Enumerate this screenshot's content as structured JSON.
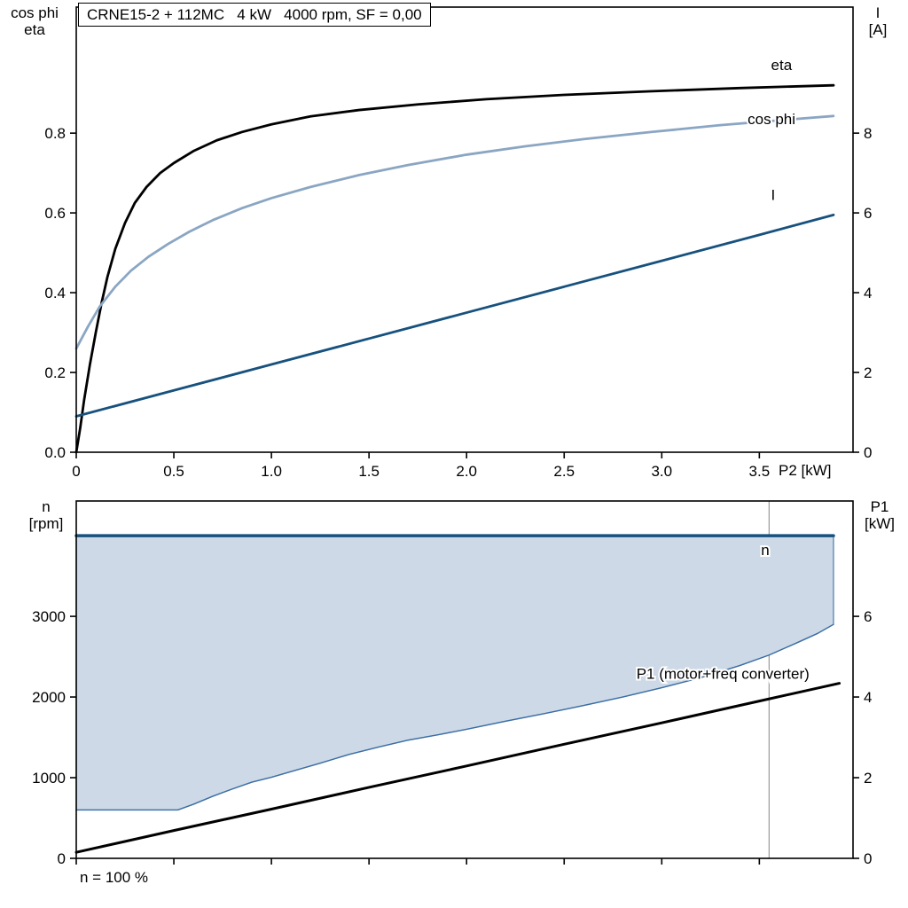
{
  "labels": {
    "top_left_1": "cos phi",
    "top_left_2": "eta",
    "top_right_1": "I",
    "top_right_2": "[A]",
    "bottom_left_1": "n",
    "bottom_left_2": "[rpm]",
    "bottom_right_1": "P1",
    "bottom_right_2": "[kW]"
  },
  "colors": {
    "black": "#000000",
    "dark_blue": "#17517e",
    "steel_blue": "#8aa6c3",
    "mid_blue": "#3c6fa5",
    "band_fill": "#cdd9e6",
    "ref_line": "#9a9a9a"
  },
  "chart_data": [
    {
      "type": "line",
      "title": "CRNE15-2 + 112MC   4 kW   4000 rpm, SF = 0,00",
      "x_label": "P2 [kW]",
      "x_range": [
        0,
        3.98
      ],
      "x_ticks": [
        {
          "v": 0,
          "label": "0"
        },
        {
          "v": 0.5,
          "label": "0.5"
        },
        {
          "v": 1.0,
          "label": "1.0"
        },
        {
          "v": 1.5,
          "label": "1.5"
        },
        {
          "v": 2.0,
          "label": "2.0"
        },
        {
          "v": 2.5,
          "label": "2.5"
        },
        {
          "v": 3.0,
          "label": "3.0"
        },
        {
          "v": 3.5,
          "label": "3.5"
        }
      ],
      "y_left": {
        "label": "cos phi / eta",
        "range": [
          0,
          1.116
        ],
        "ticks": [
          {
            "v": 0.0,
            "label": "0.0"
          },
          {
            "v": 0.2,
            "label": "0.2"
          },
          {
            "v": 0.4,
            "label": "0.4"
          },
          {
            "v": 0.6,
            "label": "0.6"
          },
          {
            "v": 0.8,
            "label": "0.8"
          }
        ]
      },
      "y_right": {
        "label": "I [A]",
        "range": [
          0,
          11.16
        ],
        "ticks": [
          {
            "v": 0,
            "label": "0"
          },
          {
            "v": 2,
            "label": "2"
          },
          {
            "v": 4,
            "label": "4"
          },
          {
            "v": 6,
            "label": "6"
          },
          {
            "v": 8,
            "label": "8"
          }
        ]
      },
      "series": [
        {
          "name": "eta",
          "axis": "left",
          "color": "#000000",
          "width": 2.8,
          "label": "eta",
          "label_x": 3.56,
          "label_y": 0.958,
          "label_anchor": "start",
          "points": [
            [
              0,
              0
            ],
            [
              0.02,
              0.06
            ],
            [
              0.04,
              0.13
            ],
            [
              0.07,
              0.22
            ],
            [
              0.1,
              0.3
            ],
            [
              0.13,
              0.375
            ],
            [
              0.16,
              0.44
            ],
            [
              0.2,
              0.51
            ],
            [
              0.25,
              0.575
            ],
            [
              0.3,
              0.625
            ],
            [
              0.36,
              0.665
            ],
            [
              0.43,
              0.7
            ],
            [
              0.5,
              0.725
            ],
            [
              0.6,
              0.755
            ],
            [
              0.72,
              0.782
            ],
            [
              0.85,
              0.803
            ],
            [
              1.0,
              0.822
            ],
            [
              1.2,
              0.842
            ],
            [
              1.45,
              0.858
            ],
            [
              1.75,
              0.872
            ],
            [
              2.1,
              0.885
            ],
            [
              2.5,
              0.896
            ],
            [
              2.95,
              0.905
            ],
            [
              3.4,
              0.913
            ],
            [
              3.88,
              0.92
            ]
          ]
        },
        {
          "name": "cos-phi",
          "axis": "left",
          "color": "#8aa6c3",
          "width": 2.8,
          "label": "cos phi",
          "label_x": 3.44,
          "label_y": 0.822,
          "label_anchor": "start",
          "points": [
            [
              0,
              0.26
            ],
            [
              0.06,
              0.315
            ],
            [
              0.12,
              0.365
            ],
            [
              0.2,
              0.415
            ],
            [
              0.28,
              0.455
            ],
            [
              0.37,
              0.49
            ],
            [
              0.47,
              0.522
            ],
            [
              0.58,
              0.553
            ],
            [
              0.7,
              0.582
            ],
            [
              0.85,
              0.612
            ],
            [
              1.0,
              0.637
            ],
            [
              1.2,
              0.665
            ],
            [
              1.45,
              0.695
            ],
            [
              1.7,
              0.72
            ],
            [
              2.0,
              0.746
            ],
            [
              2.3,
              0.767
            ],
            [
              2.6,
              0.785
            ],
            [
              2.95,
              0.803
            ],
            [
              3.3,
              0.82
            ],
            [
              3.6,
              0.832
            ],
            [
              3.88,
              0.843
            ]
          ]
        },
        {
          "name": "current",
          "axis": "right",
          "color": "#17517e",
          "width": 2.8,
          "label": "I",
          "label_x": 3.56,
          "label_y": 6.32,
          "label_anchor": "start",
          "points": [
            [
              0,
              0.9
            ],
            [
              0.5,
              1.55
            ],
            [
              1.0,
              2.2
            ],
            [
              1.5,
              2.85
            ],
            [
              2.0,
              3.5
            ],
            [
              2.5,
              4.15
            ],
            [
              3.0,
              4.8
            ],
            [
              3.5,
              5.45
            ],
            [
              3.88,
              5.95
            ]
          ]
        }
      ]
    },
    {
      "type": "line+area",
      "x_range": [
        0,
        3.98
      ],
      "x_ticks": [
        {
          "v": 0,
          "label": ""
        },
        {
          "v": 0.5,
          "label": ""
        },
        {
          "v": 1.0,
          "label": ""
        },
        {
          "v": 1.5,
          "label": ""
        },
        {
          "v": 2.0,
          "label": ""
        },
        {
          "v": 2.5,
          "label": ""
        },
        {
          "v": 3.0,
          "label": ""
        },
        {
          "v": 3.5,
          "label": ""
        }
      ],
      "y_left": {
        "label": "n [rpm]",
        "range": [
          0,
          4430
        ],
        "ticks": [
          {
            "v": 0,
            "label": "0"
          },
          {
            "v": 1000,
            "label": "1000"
          },
          {
            "v": 2000,
            "label": "2000"
          },
          {
            "v": 3000,
            "label": "3000"
          }
        ]
      },
      "y_right": {
        "label": "P1 [kW]",
        "range": [
          0,
          8.86
        ],
        "ticks": [
          {
            "v": 0,
            "label": "0"
          },
          {
            "v": 2,
            "label": "2"
          },
          {
            "v": 4,
            "label": "4"
          },
          {
            "v": 6,
            "label": "6"
          }
        ]
      },
      "ref_line_x": 3.55,
      "fill": {
        "upper": "n",
        "lower": "n-min",
        "color": "#cdd9e6",
        "edge_color": "#4a7ab0"
      },
      "footnote": "n = 100 %",
      "series": [
        {
          "name": "n-min",
          "axis": "left",
          "color": "#3c6fa5",
          "width": 1.4,
          "points": [
            [
              0,
              600
            ],
            [
              0.3,
              600
            ],
            [
              0.52,
              600
            ],
            [
              0.6,
              670
            ],
            [
              0.7,
              770
            ],
            [
              0.8,
              860
            ],
            [
              0.9,
              945
            ],
            [
              1.0,
              1005
            ],
            [
              1.1,
              1075
            ],
            [
              1.25,
              1180
            ],
            [
              1.4,
              1290
            ],
            [
              1.55,
              1380
            ],
            [
              1.7,
              1465
            ],
            [
              1.85,
              1530
            ],
            [
              2.0,
              1600
            ],
            [
              2.2,
              1700
            ],
            [
              2.4,
              1795
            ],
            [
              2.6,
              1895
            ],
            [
              2.8,
              2000
            ],
            [
              3.0,
              2115
            ],
            [
              3.2,
              2240
            ],
            [
              3.4,
              2390
            ],
            [
              3.55,
              2520
            ],
            [
              3.7,
              2680
            ],
            [
              3.8,
              2790
            ],
            [
              3.88,
              2900
            ]
          ]
        },
        {
          "name": "n",
          "axis": "left",
          "color": "#17517e",
          "width": 3.5,
          "label": "n",
          "label_x": 3.53,
          "label_y": 3760,
          "label_anchor": "middle",
          "points": [
            [
              0,
              4000
            ],
            [
              3.88,
              4000
            ]
          ]
        },
        {
          "name": "p1",
          "axis": "right",
          "color": "#000000",
          "width": 3,
          "label": "P1 (motor+freq converter)",
          "label_x": 2.87,
          "label_y": 4.45,
          "label_anchor": "start",
          "points": [
            [
              0,
              0.15
            ],
            [
              0.5,
              0.69
            ],
            [
              1.0,
              1.22
            ],
            [
              1.5,
              1.76
            ],
            [
              2.0,
              2.29
            ],
            [
              2.5,
              2.83
            ],
            [
              3.0,
              3.36
            ],
            [
              3.5,
              3.9
            ],
            [
              3.91,
              4.34
            ]
          ]
        }
      ]
    }
  ]
}
